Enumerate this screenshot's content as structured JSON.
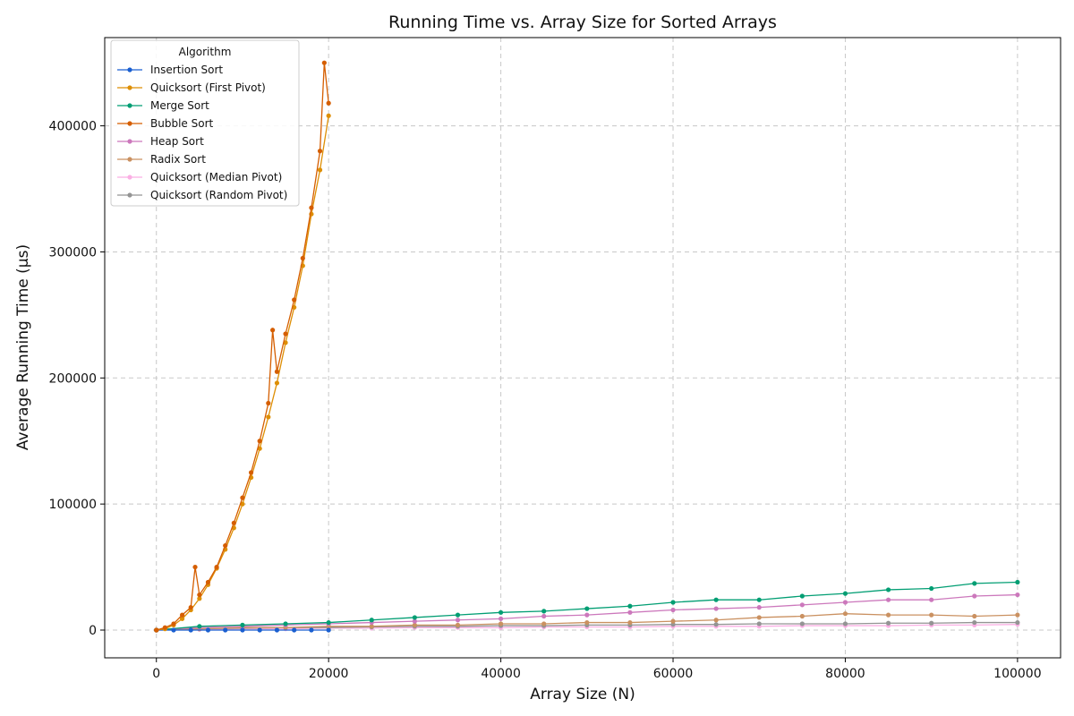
{
  "chart_data": {
    "type": "line",
    "title": "Running Time vs. Array Size for Sorted Arrays",
    "xlabel": "Array Size (N)",
    "ylabel": "Average Running Time (μs)",
    "xlim": [
      -6000,
      105000
    ],
    "ylim": [
      -22000,
      470000
    ],
    "x_ticks": [
      0,
      20000,
      40000,
      60000,
      80000,
      100000
    ],
    "y_ticks": [
      0,
      100000,
      200000,
      300000,
      400000
    ],
    "grid": true,
    "legend": {
      "title": "Algorithm",
      "placement": "top-left"
    },
    "colors": {
      "Insertion Sort": "#1a5fd0",
      "Quicksort (First Pivot)": "#de8f05",
      "Merge Sort": "#029e73",
      "Bubble Sort": "#d55e00",
      "Heap Sort": "#cc78bc",
      "Radix Sort": "#ca9161",
      "Quicksort (Median Pivot)": "#fbafe4",
      "Quicksort (Random Pivot)": "#949494"
    },
    "series": [
      {
        "name": "Insertion Sort",
        "x": [
          0,
          2000,
          4000,
          6000,
          8000,
          10000,
          12000,
          14000,
          16000,
          18000,
          20000
        ],
        "y": [
          0,
          0,
          0,
          0,
          0,
          0,
          0,
          0,
          0,
          0,
          0
        ]
      },
      {
        "name": "Quicksort (First Pivot)",
        "x": [
          0,
          1000,
          2000,
          3000,
          4000,
          5000,
          6000,
          7000,
          8000,
          9000,
          10000,
          11000,
          12000,
          13000,
          14000,
          15000,
          16000,
          17000,
          18000,
          19000,
          20000
        ],
        "y": [
          0,
          1000,
          4000,
          9000,
          16000,
          25000,
          36000,
          49000,
          64000,
          81000,
          100000,
          121000,
          144000,
          169000,
          196000,
          228000,
          256000,
          289000,
          330000,
          365000,
          408000
        ]
      },
      {
        "name": "Bubble Sort",
        "x": [
          0,
          1000,
          2000,
          3000,
          4000,
          4500,
          5000,
          6000,
          7000,
          8000,
          9000,
          10000,
          11000,
          12000,
          13000,
          13500,
          14000,
          15000,
          16000,
          17000,
          18000,
          19000,
          19500,
          20000
        ],
        "y": [
          0,
          2000,
          5000,
          12000,
          18000,
          50000,
          28000,
          38000,
          50000,
          67000,
          85000,
          105000,
          125000,
          150000,
          180000,
          238000,
          205000,
          235000,
          262000,
          295000,
          335000,
          380000,
          450000,
          418000
        ]
      },
      {
        "name": "Merge Sort",
        "x": [
          0,
          5000,
          10000,
          15000,
          20000,
          25000,
          30000,
          35000,
          40000,
          45000,
          50000,
          55000,
          60000,
          65000,
          70000,
          75000,
          80000,
          85000,
          90000,
          95000,
          100000
        ],
        "y": [
          0,
          3000,
          4000,
          5000,
          6000,
          8000,
          10000,
          12000,
          14000,
          15000,
          17000,
          19000,
          22000,
          24000,
          24000,
          27000,
          29000,
          32000,
          33000,
          37000,
          38000
        ]
      },
      {
        "name": "Heap Sort",
        "x": [
          0,
          5000,
          10000,
          15000,
          20000,
          25000,
          30000,
          35000,
          40000,
          45000,
          50000,
          55000,
          60000,
          65000,
          70000,
          75000,
          80000,
          85000,
          90000,
          95000,
          100000
        ],
        "y": [
          0,
          2000,
          3000,
          4000,
          5000,
          6000,
          7000,
          8000,
          9000,
          11000,
          12000,
          14000,
          16000,
          17000,
          18000,
          20000,
          22000,
          24000,
          24000,
          27000,
          28000
        ]
      },
      {
        "name": "Radix Sort",
        "x": [
          0,
          5000,
          10000,
          15000,
          20000,
          25000,
          30000,
          35000,
          40000,
          45000,
          50000,
          55000,
          60000,
          65000,
          70000,
          75000,
          80000,
          85000,
          90000,
          95000,
          100000
        ],
        "y": [
          0,
          1000,
          2000,
          2000,
          3000,
          3000,
          4000,
          4000,
          5000,
          5000,
          6000,
          6000,
          7000,
          8000,
          10000,
          11000,
          13000,
          12000,
          12000,
          11000,
          12000
        ]
      },
      {
        "name": "Quicksort (Median Pivot)",
        "x": [
          0,
          5000,
          10000,
          15000,
          20000,
          25000,
          30000,
          35000,
          40000,
          45000,
          50000,
          55000,
          60000,
          65000,
          70000,
          75000,
          80000,
          85000,
          90000,
          95000,
          100000
        ],
        "y": [
          0,
          500,
          1000,
          1000,
          1500,
          1500,
          2000,
          2000,
          2000,
          2500,
          2500,
          2500,
          3000,
          3000,
          3000,
          3500,
          3500,
          3500,
          4000,
          4000,
          4500
        ]
      },
      {
        "name": "Quicksort (Random Pivot)",
        "x": [
          0,
          5000,
          10000,
          15000,
          20000,
          25000,
          30000,
          35000,
          40000,
          45000,
          50000,
          55000,
          60000,
          65000,
          70000,
          75000,
          80000,
          85000,
          90000,
          95000,
          100000
        ],
        "y": [
          0,
          1000,
          1500,
          2000,
          2000,
          2500,
          3000,
          3000,
          3500,
          3500,
          4000,
          4000,
          4500,
          4500,
          5000,
          5000,
          5000,
          5500,
          5500,
          6000,
          6000
        ]
      }
    ]
  }
}
